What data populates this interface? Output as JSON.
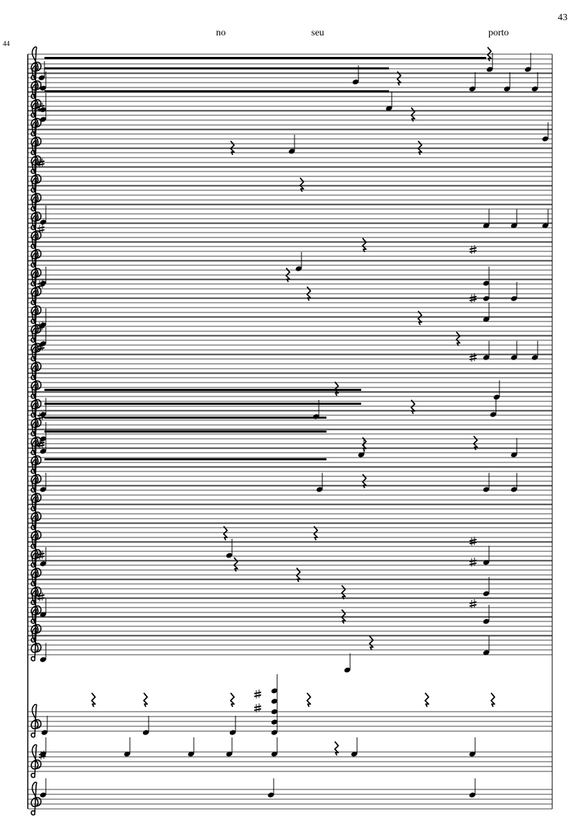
{
  "page_number": "43",
  "measure_number": "44",
  "lyrics": [
    "no",
    "seu",
    "porto"
  ],
  "notation": {
    "clef": "treble",
    "ink_color": "#000000"
  }
}
